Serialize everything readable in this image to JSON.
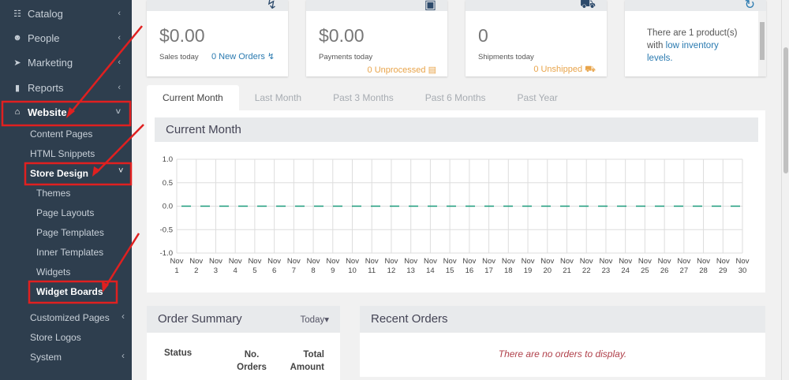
{
  "sidebar": {
    "items": [
      {
        "label": "Catalog",
        "icon": "sitemap-icon"
      },
      {
        "label": "People",
        "icon": "users-icon"
      },
      {
        "label": "Marketing",
        "icon": "rocket-icon"
      },
      {
        "label": "Reports",
        "icon": "bar-chart-icon"
      },
      {
        "label": "Website",
        "icon": "home-icon"
      }
    ],
    "website_sub": [
      "Content Pages",
      "HTML Snippets",
      "Store Design"
    ],
    "store_design_sub": [
      "Themes",
      "Page Layouts",
      "Page Templates",
      "Inner Templates",
      "Widgets",
      "Widget Boards"
    ],
    "after": [
      "Customized Pages",
      "Store Logos",
      "System"
    ]
  },
  "cards": [
    {
      "value": "$0.00",
      "label": "Sales today",
      "link": "0 New Orders"
    },
    {
      "value": "$0.00",
      "label": "Payments today",
      "status": "0 Unprocessed"
    },
    {
      "value": "0",
      "label": "Shipments today",
      "status": "0 Unshipped"
    },
    {
      "text": "There are 1 product(s) with ",
      "link": "low inventory levels."
    }
  ],
  "tabs": [
    "Current Month",
    "Last Month",
    "Past 3 Months",
    "Past 6 Months",
    "Past Year"
  ],
  "chart_panel": {
    "title": "Current Month"
  },
  "chart_data": {
    "type": "line",
    "ylim": [
      -1.0,
      1.0
    ],
    "yticks": [
      "1.0",
      "0.5",
      "0.0",
      "-0.5",
      "-1.0"
    ],
    "x": [
      1,
      2,
      3,
      4,
      5,
      6,
      7,
      8,
      9,
      10,
      11,
      12,
      13,
      14,
      15,
      16,
      17,
      18,
      19,
      20,
      21,
      22,
      23,
      24,
      25,
      26,
      27,
      28,
      29,
      30
    ],
    "xprefix": "Nov",
    "values": [
      0,
      0,
      0,
      0,
      0,
      0,
      0,
      0,
      0,
      0,
      0,
      0,
      0,
      0,
      0,
      0,
      0,
      0,
      0,
      0,
      0,
      0,
      0,
      0,
      0,
      0,
      0,
      0,
      0,
      0
    ],
    "grid": true,
    "line_style": "dashed",
    "color": "#1a9a7a"
  },
  "order_summary": {
    "title": "Order Summary",
    "filter": "Today",
    "columns": [
      "Status",
      "No. Orders",
      "Total Amount"
    ]
  },
  "recent_orders": {
    "title": "Recent Orders",
    "empty": "There are no orders to display."
  },
  "colors": {
    "sidebar": "#2e3e4e",
    "link": "#2a7ab0",
    "warning": "#e8a44a",
    "annotation": "#e02020"
  }
}
